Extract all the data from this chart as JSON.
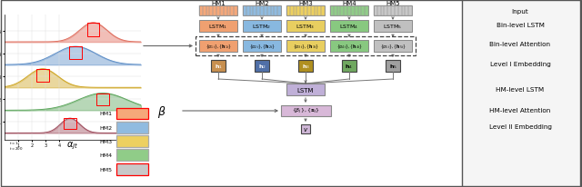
{
  "fig_width": 6.4,
  "fig_height": 2.07,
  "dpi": 100,
  "bg_color": "#ffffff",
  "hm_labels": [
    "HM1",
    "HM2",
    "HM3",
    "HM4",
    "HM5"
  ],
  "hm_colors": [
    "#F5A87A",
    "#90BBE0",
    "#EDD060",
    "#90CC88",
    "#C8C8C8"
  ],
  "embed_colors": [
    "#C89050",
    "#5070A8",
    "#B09020",
    "#70A860",
    "#A0A0A0"
  ],
  "lstm_color": "#D8B8A0",
  "lstm2_color": "#C0B0D8",
  "lstm3_color": "#C0B0D8",
  "attn_color": "#D0B8C8",
  "right_labels": [
    "Input",
    "Bin-level LSTM",
    "Bin-level Attention",
    "Level I Embedding",
    "HM-level LSTM",
    "HM-level Attention",
    "Level II Embedding"
  ],
  "plot_hm_colors": [
    "#E07060",
    "#6090C8",
    "#D0A828",
    "#60A860",
    "#A05060"
  ],
  "hm_box_colors": [
    "#F5A87A",
    "#90BBE0",
    "#EDD060",
    "#90CC88",
    "#C8C8C8"
  ]
}
